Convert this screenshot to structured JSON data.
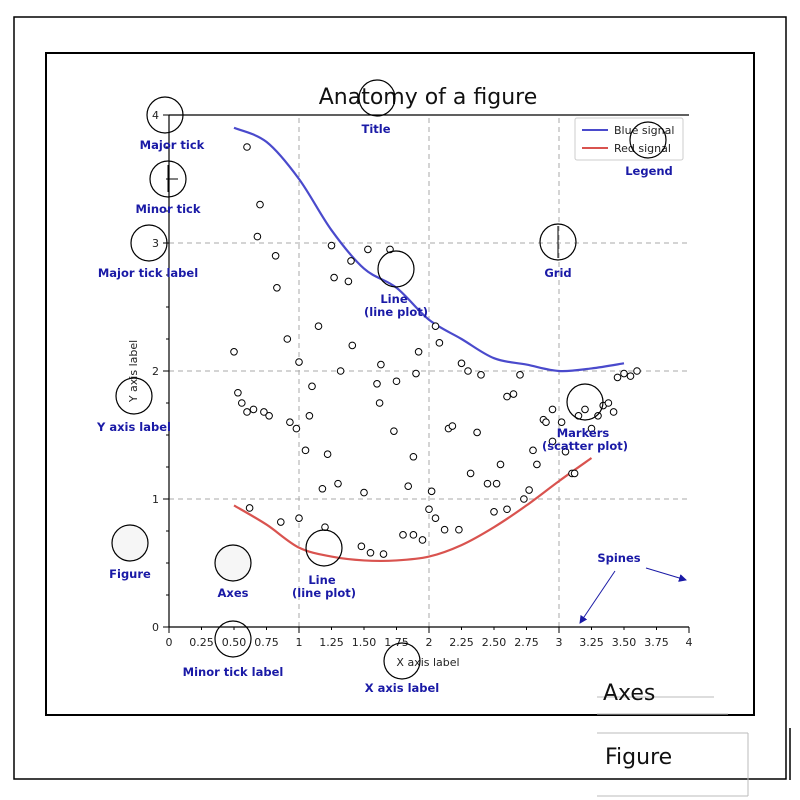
{
  "chart_data": {
    "type": "line+scatter",
    "title": "Anatomy of a figure",
    "xlabel": "X axis label",
    "ylabel": "Y axis label",
    "xlim": [
      0,
      4
    ],
    "ylim": [
      0,
      4
    ],
    "grid": true,
    "legend_position": "top-right",
    "x_major_ticks": [
      {
        "value": 0,
        "label": "0"
      },
      {
        "value": 1,
        "label": "1"
      },
      {
        "value": 2,
        "label": "2"
      },
      {
        "value": 3,
        "label": "3"
      },
      {
        "value": 4,
        "label": "4"
      }
    ],
    "x_minor_ticks": [
      {
        "value": 0.25,
        "label": "0.25"
      },
      {
        "value": 0.5,
        "label": "0.50"
      },
      {
        "value": 0.75,
        "label": "0.75"
      },
      {
        "value": 1.25,
        "label": "1.25"
      },
      {
        "value": 1.5,
        "label": "1.50"
      },
      {
        "value": 1.75,
        "label": "1.75"
      },
      {
        "value": 2.25,
        "label": "2.25"
      },
      {
        "value": 2.5,
        "label": "2.50"
      },
      {
        "value": 2.75,
        "label": "2.75"
      },
      {
        "value": 3.25,
        "label": "3.25"
      },
      {
        "value": 3.5,
        "label": "3.50"
      },
      {
        "value": 3.75,
        "label": "3.75"
      }
    ],
    "y_major_ticks": [
      {
        "value": 0,
        "label": "0"
      },
      {
        "value": 1,
        "label": "1"
      },
      {
        "value": 2,
        "label": "2"
      },
      {
        "value": 3,
        "label": "3"
      },
      {
        "value": 4,
        "label": "4"
      }
    ],
    "series": [
      {
        "name": "Blue signal",
        "type": "line",
        "color": "#4a4acc",
        "x": [
          0.5,
          0.75,
          1.0,
          1.25,
          1.5,
          1.75,
          2.0,
          2.25,
          2.5,
          2.75,
          3.0,
          3.25,
          3.5
        ],
        "y": [
          3.9,
          3.79,
          3.5,
          3.1,
          2.8,
          2.65,
          2.4,
          2.25,
          2.1,
          2.05,
          2.0,
          2.02,
          2.06
        ]
      },
      {
        "name": "Red signal",
        "type": "line",
        "color": "#d9534f",
        "x": [
          0.5,
          0.75,
          1.0,
          1.25,
          1.5,
          1.75,
          2.0,
          2.25,
          2.5,
          2.75,
          3.0,
          3.25
        ],
        "y": [
          0.95,
          0.8,
          0.62,
          0.55,
          0.52,
          0.52,
          0.55,
          0.64,
          0.78,
          0.95,
          1.14,
          1.32
        ]
      },
      {
        "type": "scatter",
        "color": "#000000",
        "x": [
          0.7,
          0.68,
          0.82,
          0.83,
          0.6,
          0.5,
          0.53,
          0.56,
          0.6,
          0.65,
          0.73,
          0.77,
          0.93,
          0.98,
          0.91,
          1.0,
          1.05,
          1.08,
          1.1,
          1.15,
          1.22,
          1.3,
          1.32,
          1.25,
          1.27,
          1.38,
          1.4,
          1.41,
          1.5,
          1.53,
          1.62,
          1.63,
          1.7,
          1.73,
          1.75,
          1.8,
          1.84,
          1.88,
          1.9,
          1.92,
          1.95,
          2.0,
          2.02,
          2.05,
          2.08,
          2.12,
          2.15,
          2.18,
          2.23,
          2.25,
          2.32,
          2.37,
          2.4,
          2.45,
          2.5,
          2.52,
          2.55,
          2.6,
          2.65,
          2.7,
          2.73,
          2.77,
          2.8,
          2.83,
          2.88,
          2.9,
          2.95,
          3.05,
          3.1,
          3.12,
          3.2,
          3.3,
          3.34,
          3.38,
          3.42,
          3.45,
          3.5,
          3.55,
          3.6,
          1.18,
          1.55,
          1.65,
          2.05,
          2.3,
          1.88,
          1.48,
          1.2,
          1.0,
          0.86,
          0.62,
          1.6,
          2.6,
          2.95,
          3.02,
          3.15,
          3.25
        ],
        "y": [
          3.3,
          3.05,
          2.9,
          2.65,
          3.75,
          2.15,
          1.83,
          1.75,
          1.68,
          1.7,
          1.68,
          1.65,
          1.6,
          1.55,
          2.25,
          2.07,
          1.38,
          1.65,
          1.88,
          2.35,
          1.35,
          1.12,
          2.0,
          2.98,
          2.73,
          2.7,
          2.86,
          2.2,
          1.05,
          2.95,
          1.75,
          2.05,
          2.95,
          1.53,
          1.92,
          0.72,
          1.1,
          1.33,
          1.98,
          2.15,
          0.68,
          0.92,
          1.06,
          2.35,
          2.22,
          0.76,
          1.55,
          1.57,
          0.76,
          2.06,
          1.2,
          1.52,
          1.97,
          1.12,
          0.9,
          1.12,
          1.27,
          0.92,
          1.82,
          1.97,
          1.0,
          1.07,
          1.38,
          1.27,
          1.62,
          1.6,
          1.45,
          1.37,
          1.2,
          1.2,
          1.7,
          1.65,
          1.73,
          1.75,
          1.68,
          1.95,
          1.98,
          1.96,
          2.0,
          1.08,
          0.58,
          0.57,
          0.85,
          2.0,
          0.72,
          0.63,
          0.78,
          0.85,
          0.82,
          0.93,
          1.9,
          1.8,
          1.7,
          1.6,
          1.65,
          1.55
        ]
      }
    ],
    "annotations": [
      {
        "label": "Title"
      },
      {
        "label": "Major tick"
      },
      {
        "label": "Minor tick"
      },
      {
        "label": "Major tick label"
      },
      {
        "label": "Y axis label"
      },
      {
        "label": "Figure"
      },
      {
        "label": "Axes"
      },
      {
        "label": "Minor tick label"
      },
      {
        "label": "Line\n(line plot)"
      },
      {
        "label": "Line\n(line plot)"
      },
      {
        "label": "Grid"
      },
      {
        "label": "Legend"
      },
      {
        "label": "Markers\n(scatter plot)"
      },
      {
        "label": "Spines"
      },
      {
        "label": "X axis label"
      }
    ]
  },
  "frame_labels": {
    "axes": "Axes",
    "figure": "Figure"
  }
}
